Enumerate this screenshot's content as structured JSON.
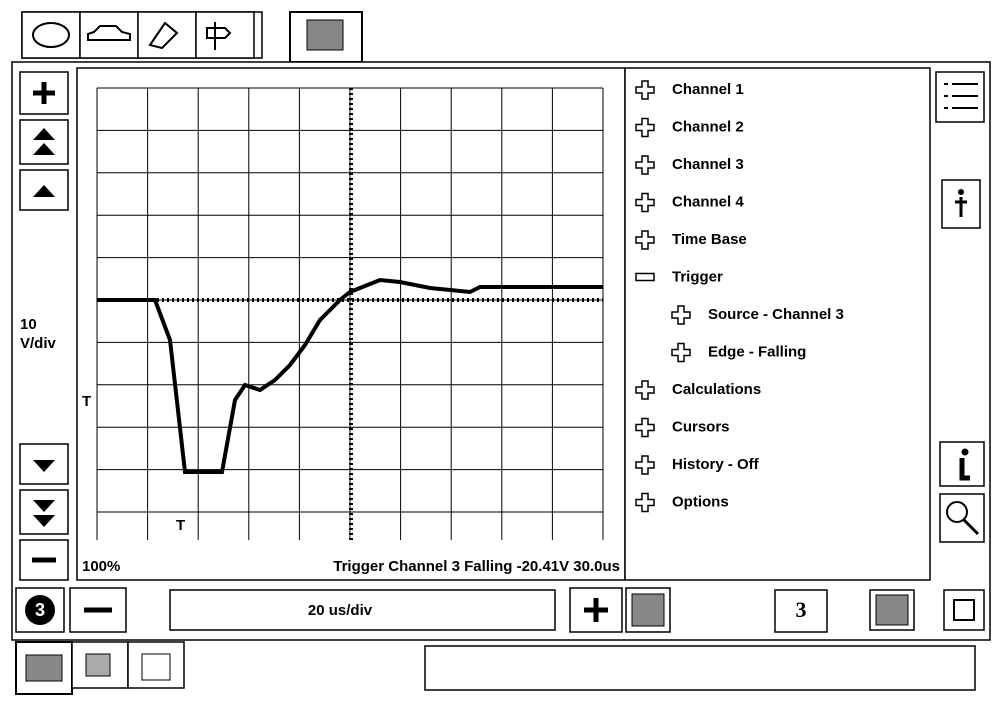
{
  "left_panel": {
    "scale_value": "10",
    "scale_unit": "V/div"
  },
  "plot": {
    "zoom": "100%",
    "status": "Trigger Channel 3 Falling -20.41V 30.0us",
    "trigger_markers": [
      "T",
      "T"
    ]
  },
  "tree": [
    {
      "label": "Channel 1",
      "level": 0
    },
    {
      "label": "Channel 2",
      "level": 0
    },
    {
      "label": "Channel 3",
      "level": 0
    },
    {
      "label": "Channel 4",
      "level": 0
    },
    {
      "label": "Time Base",
      "level": 0
    },
    {
      "label": "Trigger",
      "level": 0,
      "expanded": true
    },
    {
      "label": "Source - Channel 3",
      "level": 1
    },
    {
      "label": "Edge - Falling",
      "level": 1
    },
    {
      "label": "Calculations",
      "level": 0
    },
    {
      "label": "Cursors",
      "level": 0
    },
    {
      "label": "History - Off",
      "level": 0
    },
    {
      "label": "Options",
      "level": 0
    }
  ],
  "bottom_bar": {
    "channel_badge": "3",
    "timebase": "20 us/div",
    "channel_box": "3"
  }
}
